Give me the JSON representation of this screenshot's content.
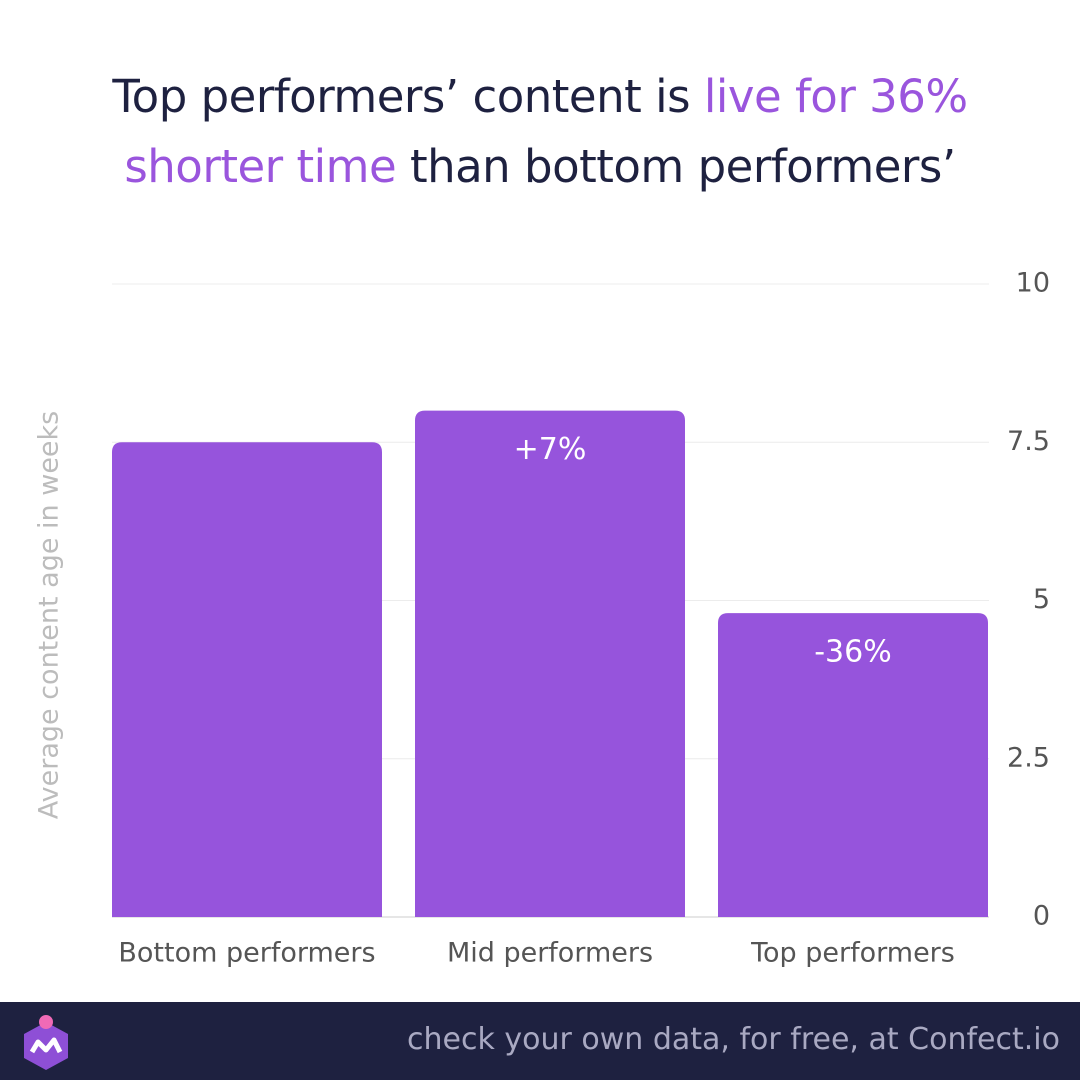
{
  "chart_data": {
    "type": "bar",
    "title_lines": [
      [
        {
          "text": "Top performers’ content is ",
          "color": "#1e2140"
        },
        {
          "text": "live for 36%",
          "color": "#9a55dd"
        }
      ],
      [
        {
          "text": "shorter time",
          "color": "#9a55dd"
        },
        {
          "text": " than bottom performers’",
          "color": "#1e2140"
        }
      ]
    ],
    "y_label": "Average content age in weeks",
    "categories": [
      "Bottom performers",
      "Mid performers",
      "Top performers"
    ],
    "values": [
      7.5,
      8.0,
      4.8
    ],
    "annotations": [
      null,
      "+7%",
      "-36%"
    ],
    "color": "#9654dc",
    "ylim": [
      0,
      10
    ],
    "yticks": [
      0,
      2.5,
      5,
      7.5,
      10
    ],
    "y_axis_side": "right",
    "grid": true
  },
  "footer": {
    "text": "check your own data, for free, at Confect.io"
  }
}
